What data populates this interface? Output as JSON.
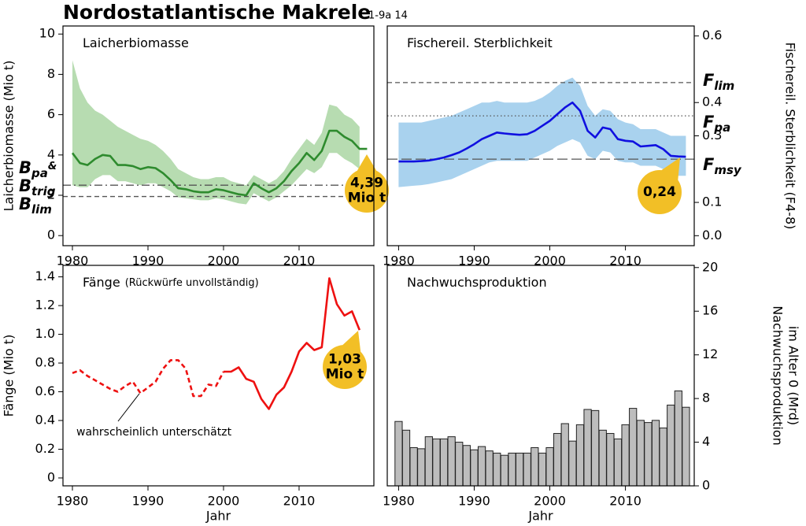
{
  "title": "Nordostatlantische Makrele",
  "subtitle": "1-9a 14",
  "chart_data": [
    {
      "type": "line",
      "title": "Laicherbiomasse",
      "ylabel": "Laicherbiomasse (Mio t)",
      "yaxis": "left",
      "x": [
        1980,
        1981,
        1982,
        1983,
        1984,
        1985,
        1986,
        1987,
        1988,
        1989,
        1990,
        1991,
        1992,
        1993,
        1994,
        1995,
        1996,
        1997,
        1998,
        1999,
        2000,
        2001,
        2002,
        2003,
        2004,
        2005,
        2006,
        2007,
        2008,
        2009,
        2010,
        2011,
        2012,
        2013,
        2014,
        2015,
        2016,
        2017,
        2018,
        2019
      ],
      "values": [
        4.1,
        3.6,
        3.5,
        3.8,
        4.0,
        3.95,
        3.5,
        3.5,
        3.45,
        3.3,
        3.4,
        3.35,
        3.1,
        2.75,
        2.35,
        2.3,
        2.2,
        2.15,
        2.15,
        2.3,
        2.25,
        2.15,
        2.05,
        2.0,
        2.6,
        2.35,
        2.15,
        2.35,
        2.7,
        3.2,
        3.6,
        4.1,
        3.75,
        4.2,
        5.2,
        5.2,
        4.9,
        4.7,
        4.3,
        4.3
      ],
      "upper": [
        8.7,
        7.3,
        6.6,
        6.2,
        6.0,
        5.7,
        5.4,
        5.2,
        5.0,
        4.8,
        4.7,
        4.5,
        4.2,
        3.8,
        3.3,
        3.1,
        2.9,
        2.8,
        2.8,
        2.9,
        2.9,
        2.7,
        2.6,
        2.5,
        3.0,
        2.8,
        2.6,
        2.8,
        3.2,
        3.8,
        4.3,
        4.8,
        4.5,
        5.1,
        6.5,
        6.4,
        6.0,
        5.8,
        5.4,
        null
      ],
      "lower": [
        2.5,
        2.4,
        2.4,
        2.8,
        3.0,
        3.0,
        2.7,
        2.7,
        2.6,
        2.5,
        2.6,
        2.6,
        2.4,
        2.2,
        1.9,
        1.85,
        1.8,
        1.75,
        1.75,
        1.85,
        1.8,
        1.7,
        1.6,
        1.55,
        2.1,
        1.9,
        1.7,
        1.9,
        2.2,
        2.5,
        2.9,
        3.3,
        3.1,
        3.4,
        4.1,
        4.1,
        3.8,
        3.6,
        3.3,
        null
      ],
      "color": "#2e8b2e",
      "band_color": "#b7dcb1",
      "xlim": [
        1978.75,
        2019.9
      ],
      "ylim": [
        -0.5,
        10.4
      ],
      "xticks": [
        1980,
        1990,
        2000,
        2010
      ],
      "yticks": [
        0,
        2,
        4,
        6,
        8,
        10
      ],
      "reference_lines": [
        {
          "value": 2.5,
          "style": "dashdot",
          "labels": [
            {
              "main": "B",
              "sub": "pa",
              "suffix": "&"
            },
            {
              "main": "B",
              "sub": "trig"
            }
          ]
        },
        {
          "value": 1.94,
          "style": "dashed",
          "labels": [
            {
              "main": "B",
              "sub": "lim"
            }
          ]
        }
      ],
      "callout": {
        "lines": [
          "4,39",
          "Mio t"
        ]
      }
    },
    {
      "type": "line",
      "title": "Fischereil. Sterblichkeit",
      "ylabel": "Fischereil. Sterblichkeit (F4-8)",
      "yaxis": "right",
      "x": [
        1980,
        1981,
        1982,
        1983,
        1984,
        1985,
        1986,
        1987,
        1988,
        1989,
        1990,
        1991,
        1992,
        1993,
        1994,
        1995,
        1996,
        1997,
        1998,
        1999,
        2000,
        2001,
        2002,
        2003,
        2004,
        2005,
        2006,
        2007,
        2008,
        2009,
        2010,
        2011,
        2012,
        2013,
        2014,
        2015,
        2016,
        2017,
        2018
      ],
      "values": [
        0.223,
        0.223,
        0.223,
        0.224,
        0.226,
        0.23,
        0.235,
        0.242,
        0.25,
        0.262,
        0.275,
        0.29,
        0.3,
        0.31,
        0.307,
        0.305,
        0.303,
        0.305,
        0.315,
        0.33,
        0.345,
        0.365,
        0.385,
        0.4,
        0.375,
        0.315,
        0.295,
        0.325,
        0.32,
        0.29,
        0.285,
        0.283,
        0.268,
        0.27,
        0.272,
        0.26,
        0.24,
        0.238,
        0.237
      ],
      "upper": [
        0.34,
        0.34,
        0.34,
        0.34,
        0.345,
        0.35,
        0.355,
        0.36,
        0.37,
        0.38,
        0.39,
        0.4,
        0.4,
        0.405,
        0.4,
        0.4,
        0.4,
        0.4,
        0.405,
        0.415,
        0.43,
        0.45,
        0.465,
        0.475,
        0.45,
        0.39,
        0.36,
        0.38,
        0.375,
        0.35,
        0.34,
        0.335,
        0.32,
        0.32,
        0.32,
        0.31,
        0.3,
        0.3,
        0.3
      ],
      "lower": [
        0.146,
        0.148,
        0.15,
        0.152,
        0.155,
        0.16,
        0.165,
        0.17,
        0.18,
        0.19,
        0.2,
        0.21,
        0.22,
        0.225,
        0.225,
        0.225,
        0.225,
        0.225,
        0.235,
        0.245,
        0.255,
        0.27,
        0.28,
        0.29,
        0.28,
        0.24,
        0.23,
        0.255,
        0.25,
        0.225,
        0.22,
        0.22,
        0.21,
        0.21,
        0.21,
        0.2,
        0.185,
        0.18,
        0.18
      ],
      "color": "#1010e0",
      "band_color": "#a9d2ee",
      "xlim": [
        1978.5,
        2019.1
      ],
      "ylim": [
        -0.03,
        0.63
      ],
      "xticks": [
        1980,
        1990,
        2000,
        2010
      ],
      "yticks": [
        {
          "value": 0,
          "label": "0.0"
        },
        0.1,
        0.3,
        0.4,
        0.6
      ],
      "reference_lines": [
        {
          "value": 0.46,
          "style": "dashed",
          "labels": [
            {
              "main": "F",
              "sub": "lim"
            }
          ]
        },
        {
          "value": 0.36,
          "style": "dotted",
          "labels": [
            {
              "main": "F",
              "sub": "pa"
            }
          ]
        },
        {
          "value": 0.23,
          "style": "longdash",
          "labels": [
            {
              "main": "F",
              "sub": "msy"
            }
          ]
        }
      ],
      "callout": {
        "lines": [
          "0,24"
        ]
      }
    },
    {
      "type": "line",
      "title": "Fänge",
      "title_note": "(Rückwürfe unvollständig)",
      "ylabel": "Fänge (Mio t)",
      "xlabel": "Jahr",
      "yaxis": "left",
      "x": [
        1980,
        1981,
        1982,
        1983,
        1984,
        1985,
        1986,
        1987,
        1988,
        1989,
        1990,
        1991,
        1992,
        1993,
        1994,
        1995,
        1996,
        1997,
        1998,
        1999,
        2000,
        2001,
        2002,
        2003,
        2004,
        2005,
        2006,
        2007,
        2008,
        2009,
        2010,
        2011,
        2012,
        2013,
        2014,
        2015,
        2016,
        2017,
        2018
      ],
      "values": [
        0.73,
        0.75,
        0.71,
        0.68,
        0.65,
        0.62,
        0.6,
        0.64,
        0.67,
        0.59,
        0.63,
        0.67,
        0.76,
        0.82,
        0.82,
        0.76,
        0.57,
        0.57,
        0.65,
        0.64,
        0.74,
        0.74,
        0.77,
        0.69,
        0.67,
        0.55,
        0.48,
        0.58,
        0.63,
        0.74,
        0.88,
        0.94,
        0.89,
        0.91,
        1.39,
        1.21,
        1.13,
        1.16,
        1.03
      ],
      "dashed_until": 2000,
      "color": "#ee1111",
      "xlim": [
        1978.75,
        2019.9
      ],
      "ylim": [
        -0.055,
        1.48
      ],
      "xticks": [
        1980,
        1990,
        2000,
        2010
      ],
      "yticks": [
        0,
        0.2,
        0.4,
        0.6,
        0.8,
        {
          "value": 1,
          "label": "1.0"
        },
        1.2,
        1.4
      ],
      "annotation": "wahrscheinlich unterschätzt",
      "callout": {
        "lines": [
          "1,03",
          "Mio t"
        ]
      }
    },
    {
      "type": "bar",
      "title": "Nachwuchsproduktion",
      "ylabel": [
        "Nachwuchsproduktion",
        "im Alter 0 (Mrd)"
      ],
      "xlabel": "Jahr",
      "yaxis": "right",
      "x": [
        1980,
        1981,
        1982,
        1983,
        1984,
        1985,
        1986,
        1987,
        1988,
        1989,
        1990,
        1991,
        1992,
        1993,
        1994,
        1995,
        1996,
        1997,
        1998,
        1999,
        2000,
        2001,
        2002,
        2003,
        2004,
        2005,
        2006,
        2007,
        2008,
        2009,
        2010,
        2011,
        2012,
        2013,
        2014,
        2015,
        2016,
        2017,
        2018
      ],
      "values": [
        5.9,
        5.1,
        3.5,
        3.4,
        4.5,
        4.3,
        4.3,
        4.5,
        4.0,
        3.7,
        3.3,
        3.6,
        3.2,
        3.0,
        2.8,
        3.0,
        3.0,
        3.0,
        3.5,
        3.0,
        3.5,
        4.8,
        5.7,
        4.1,
        5.6,
        7.0,
        6.9,
        5.1,
        4.8,
        4.3,
        5.6,
        7.1,
        6.0,
        5.8,
        6.0,
        5.3,
        7.4,
        8.7,
        7.2
      ],
      "color": "#bdbdbd",
      "xlim": [
        1978.5,
        2019.1
      ],
      "ylim": [
        0,
        20.2
      ],
      "xticks": [
        1980,
        1990,
        2000,
        2010
      ],
      "yticks": [
        0,
        4,
        8,
        12,
        16,
        20
      ]
    }
  ]
}
